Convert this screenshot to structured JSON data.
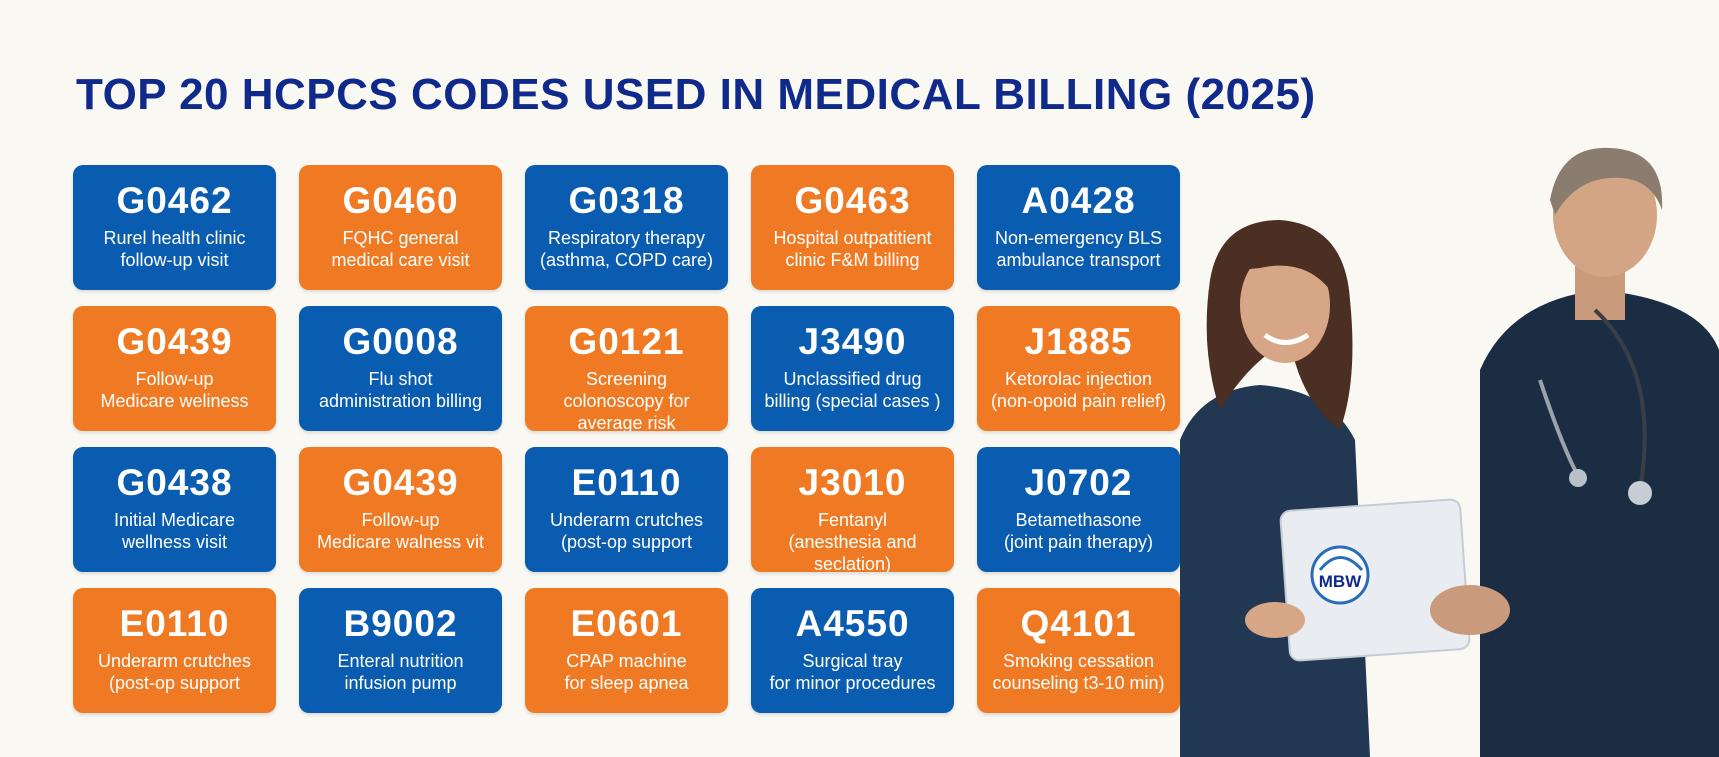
{
  "title": "TOP 20 HCPCS CODES USED IN MEDICAL BILLING (2025)",
  "colors": {
    "blue": "#0a5cb0",
    "orange": "#f07a23",
    "title": "#0f2a8a"
  },
  "cards": [
    {
      "code": "G0462",
      "line1": "Rurel health clinic",
      "line2": "follow-up visit",
      "line3": "",
      "color": "blue"
    },
    {
      "code": "G0460",
      "line1": "FQHC general",
      "line2": "medical care visit",
      "line3": "",
      "color": "orange"
    },
    {
      "code": "G0318",
      "line1": "Respiratory therapy",
      "line2": "(asthma, COPD care)",
      "line3": "",
      "color": "blue"
    },
    {
      "code": "G0463",
      "line1": "Hospital outpatitient",
      "line2": "clinic F&M billing",
      "line3": "",
      "color": "orange"
    },
    {
      "code": "A0428",
      "line1": "Non-emergency BLS",
      "line2": "ambulance transport",
      "line3": "",
      "color": "blue"
    },
    {
      "code": "G0439",
      "line1": "Follow-up",
      "line2": "Medicare weliness",
      "line3": "",
      "color": "orange"
    },
    {
      "code": "G0008",
      "line1": "Flu shot",
      "line2": "administration billing",
      "line3": "",
      "color": "blue"
    },
    {
      "code": "G0121",
      "line1": "Screening",
      "line2": "colonoscopy for",
      "line3": "average risk",
      "color": "orange"
    },
    {
      "code": "J3490",
      "line1": "Unclassified drug",
      "line2": "billing (special cases )",
      "line3": "",
      "color": "blue"
    },
    {
      "code": "J1885",
      "line1": "Ketorolac injection",
      "line2": "(non-opoid pain relief)",
      "line3": "",
      "color": "orange"
    },
    {
      "code": "G0438",
      "line1": "Initial Medicare",
      "line2": "wellness visit",
      "line3": "",
      "color": "blue"
    },
    {
      "code": "G0439",
      "line1": "Follow-up",
      "line2": "Medicare walness vit",
      "line3": "",
      "color": "orange"
    },
    {
      "code": "E0110",
      "line1": "Underarm crutches",
      "line2": "(post-op support",
      "line3": "",
      "color": "blue"
    },
    {
      "code": "J3010",
      "line1": "Fentanyl",
      "line2": "(anesthesia and",
      "line3": "seclation)",
      "color": "orange"
    },
    {
      "code": "J0702",
      "line1": "Betamethasone",
      "line2": "(joint pain therapy)",
      "line3": "",
      "color": "blue"
    },
    {
      "code": "E0110",
      "line1": "Underarm crutches",
      "line2": "(post-op support",
      "line3": "",
      "color": "orange"
    },
    {
      "code": "B9002",
      "line1": "Enteral nutrition",
      "line2": "infusion pump",
      "line3": "",
      "color": "blue"
    },
    {
      "code": "E0601",
      "line1": "CPAP machine",
      "line2": "for sleep apnea",
      "line3": "",
      "color": "orange"
    },
    {
      "code": "A4550",
      "line1": "Surgical tray",
      "line2": "for minor procedures",
      "line3": "",
      "color": "blue"
    },
    {
      "code": "Q4101",
      "line1": "Smoking cessation",
      "line2": "counseling t3-10 min)",
      "line3": "",
      "color": "orange"
    }
  ],
  "photo": {
    "logo_text": "MBW"
  }
}
